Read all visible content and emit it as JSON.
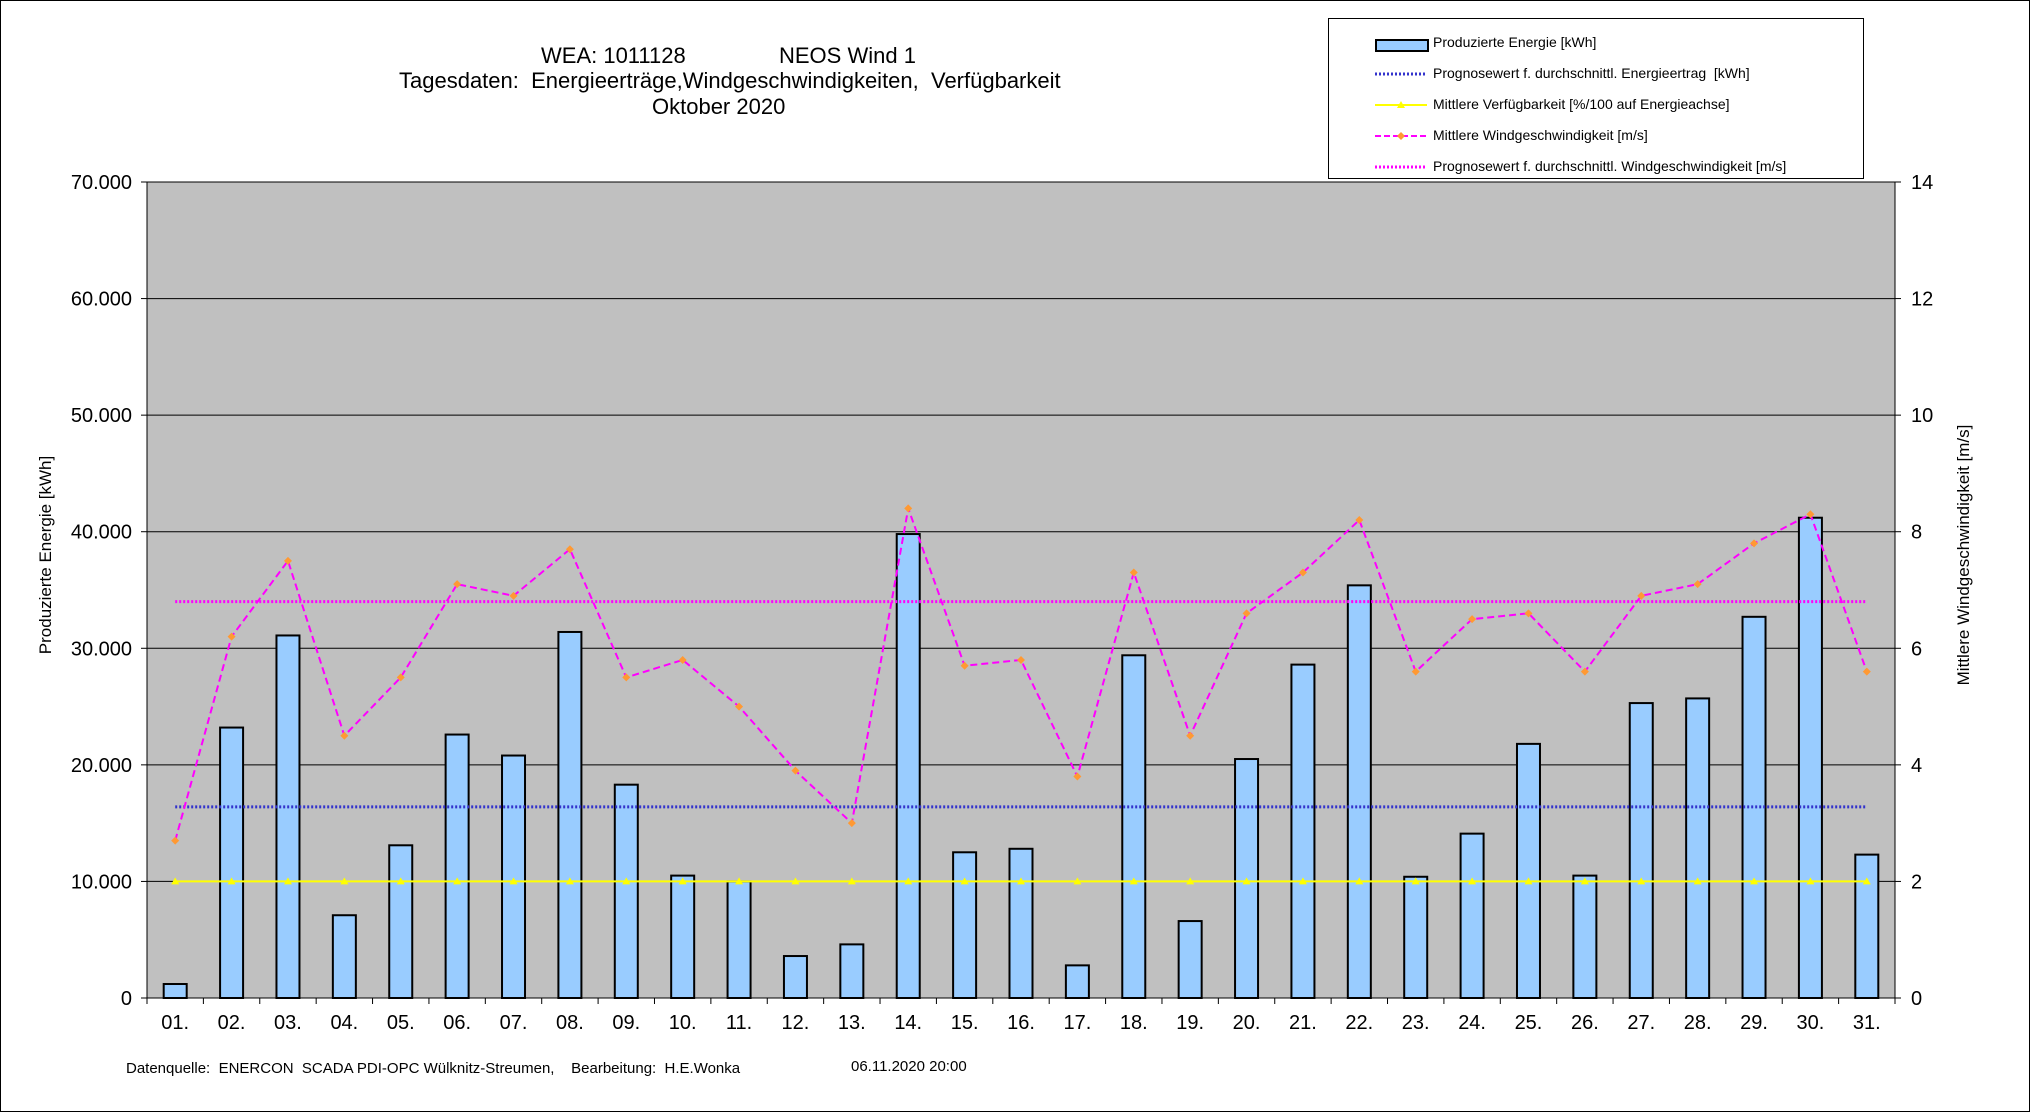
{
  "header": {
    "line1_left": "WEA: 1011128",
    "line1_right": "NEOS Wind 1",
    "line2": "Tagesdaten:  Energieerträge,Windgeschwindigkeiten,  Verfügbarkeit",
    "line3": "Oktober 2020"
  },
  "footer": {
    "source": "Datenquelle:  ENERCON  SCADA PDI-OPC Wülknitz-Streumen,    Bearbeitung:  H.E.Wonka",
    "timestamp": "06.11.2020 20:00"
  },
  "legend": {
    "items": [
      {
        "label": "Produzierte Energie [kWh]",
        "style": "bar",
        "color": "#99ccff"
      },
      {
        "label": "Prognosewert f. durchschnittl. Energieertrag  [kWh]",
        "style": "dotted-line",
        "color": "#3333cc"
      },
      {
        "label": "Mittlere Verfügbarkeit [%/100 auf Energieachse]",
        "style": "line-triangle",
        "color": "#ffff00"
      },
      {
        "label": "Mittlere Windgeschwindigkeit [m/s]",
        "style": "dashed-diamond",
        "color": "#ff00ff"
      },
      {
        "label": "Prognosewert f. durchschnittl. Windgeschwindigkeit [m/s]",
        "style": "dotted-line",
        "color": "#ff00ff"
      }
    ]
  },
  "chart_data": {
    "type": "bar",
    "categories": [
      "01.",
      "02.",
      "03.",
      "04.",
      "05.",
      "06.",
      "07.",
      "08.",
      "09.",
      "10.",
      "11.",
      "12.",
      "13.",
      "14.",
      "15.",
      "16.",
      "17.",
      "18.",
      "19.",
      "20.",
      "21.",
      "22.",
      "23.",
      "24.",
      "25.",
      "26.",
      "27.",
      "28.",
      "29.",
      "30.",
      "31."
    ],
    "ylabel": "Produzierte Energie [kWh]",
    "y2label": "Mittlere Windgeschwindigkeit [m/s]",
    "ylim": [
      0,
      70000
    ],
    "y2lim": [
      0,
      14
    ],
    "yticks": [
      "0",
      "10.000",
      "20.000",
      "30.000",
      "40.000",
      "50.000",
      "60.000",
      "70.000"
    ],
    "y2ticks": [
      "0",
      "2",
      "4",
      "6",
      "8",
      "10",
      "12",
      "14"
    ],
    "grid": true,
    "plot_background": "#c0c0c0",
    "legend_position": "top-right",
    "series": [
      {
        "name": "Produzierte Energie [kWh]",
        "axis": "left",
        "kind": "bar",
        "color": "#99ccff",
        "values": [
          1200,
          23200,
          31100,
          7100,
          13100,
          22600,
          20800,
          31400,
          18300,
          10500,
          10000,
          3600,
          4600,
          39800,
          12500,
          12800,
          2800,
          29400,
          6600,
          20500,
          28600,
          35400,
          10400,
          14100,
          21800,
          10500,
          25300,
          25700,
          32700,
          41200,
          12300
        ]
      },
      {
        "name": "Prognosewert f. durchschnittl. Energieertrag  [kWh]",
        "axis": "left",
        "kind": "constant",
        "color": "#3333cc",
        "value": 16400
      },
      {
        "name": "Mittlere Verfügbarkeit [%/100 auf Energieachse]",
        "axis": "left",
        "kind": "constant-markers",
        "color": "#ffff00",
        "value": 10000
      },
      {
        "name": "Mittlere Windgeschwindigkeit [m/s]",
        "axis": "right",
        "kind": "line",
        "color": "#ff00ff",
        "marker_color": "#ff9933",
        "values": [
          2.7,
          6.2,
          7.5,
          4.5,
          5.5,
          7.1,
          6.9,
          7.7,
          5.5,
          5.8,
          5.0,
          3.9,
          3.0,
          8.4,
          5.7,
          5.8,
          3.8,
          7.3,
          4.5,
          6.6,
          7.3,
          8.2,
          5.6,
          6.5,
          6.6,
          5.6,
          6.9,
          7.1,
          7.8,
          8.3,
          5.6
        ]
      },
      {
        "name": "Prognosewert f. durchschnittl. Windgeschwindigkeit [m/s]",
        "axis": "right",
        "kind": "constant",
        "color": "#ff00ff",
        "value": 6.8
      }
    ]
  }
}
